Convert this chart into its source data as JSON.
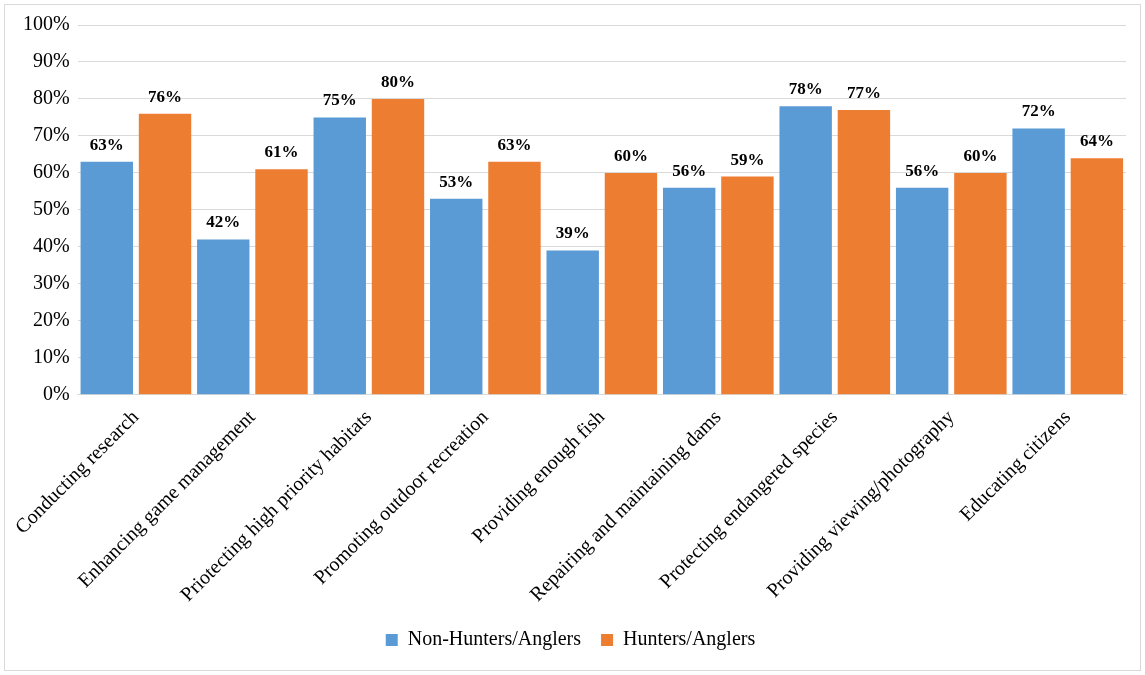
{
  "chart_data": {
    "type": "bar",
    "categories": [
      "Conducting research",
      "Enhancing game management",
      "Priotecting high priority habitats",
      "Promoting outdoor recreation",
      "Providing enough fish",
      "Repairing and maintaining dams",
      "Protecting endangered species",
      "Providing viewing/photography",
      "Educating citizens"
    ],
    "series": [
      {
        "name": "Non-Hunters/Anglers",
        "color": "#5b9bd5",
        "values": [
          63,
          42,
          75,
          53,
          39,
          56,
          78,
          56,
          72
        ],
        "value_labels": [
          "63%",
          "42%",
          "75%",
          "53%",
          "39%",
          "56%",
          "78%",
          "56%",
          "72%"
        ]
      },
      {
        "name": "Hunters/Anglers",
        "color": "#ed7d31",
        "values": [
          76,
          61,
          80,
          63,
          60,
          59,
          77,
          60,
          64
        ],
        "value_labels": [
          "76%",
          "61%",
          "80%",
          "63%",
          "60%",
          "59%",
          "77%",
          "60%",
          "64%"
        ]
      }
    ],
    "ylim": [
      0,
      100
    ],
    "yticks": [
      {
        "value": 0,
        "label": "0%"
      },
      {
        "value": 10,
        "label": "10%"
      },
      {
        "value": 20,
        "label": "20%"
      },
      {
        "value": 30,
        "label": "30%"
      },
      {
        "value": 40,
        "label": "40%"
      },
      {
        "value": 50,
        "label": "50%"
      },
      {
        "value": 60,
        "label": "60%"
      },
      {
        "value": 70,
        "label": "70%"
      },
      {
        "value": 80,
        "label": "80%"
      },
      {
        "value": 90,
        "label": "90%"
      },
      {
        "value": 100,
        "label": "100%"
      }
    ],
    "grid": "y",
    "legend": "bottom"
  }
}
